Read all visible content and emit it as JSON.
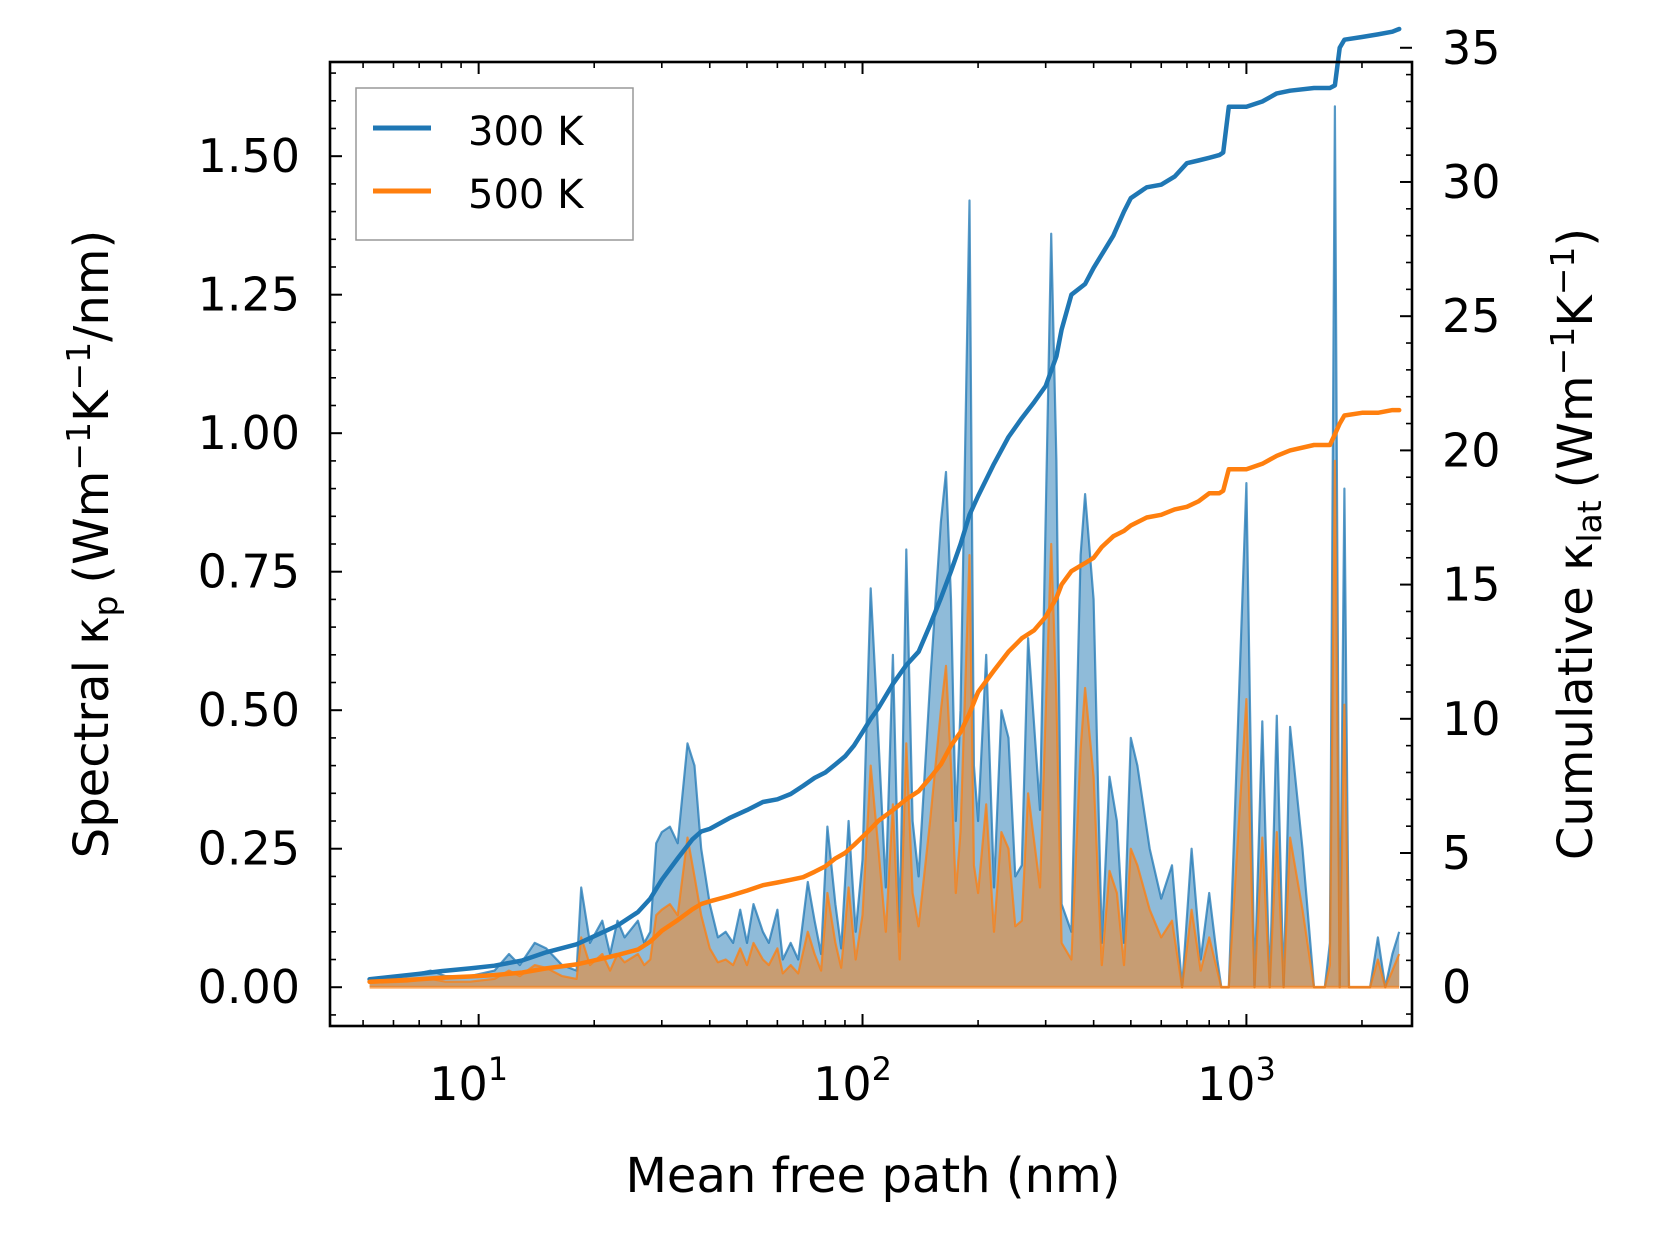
{
  "chart_data": {
    "type": "line",
    "title": "",
    "xlabel": "Mean free path (nm)",
    "ylabel_left": {
      "main": "Spectral κ",
      "sub": "p",
      "units": "(Wm",
      "e1": "−1",
      "mid": "K",
      "e2": "−1",
      "tail": "/nm)"
    },
    "ylabel_right": {
      "main": "Cumulative κ",
      "sub": "lat",
      "units": "(Wm",
      "e1": "−1",
      "mid": "K",
      "e2": "−1",
      "tail": ")"
    },
    "xscale": "log",
    "xlim": [
      4.1,
      2700
    ],
    "ylim_left": [
      -0.07,
      1.67
    ],
    "ylim_right": [
      -1.445,
      34.47
    ],
    "x_ticks": [
      {
        "value": 10,
        "base": "10",
        "exp": "1"
      },
      {
        "value": 100,
        "base": "10",
        "exp": "2"
      },
      {
        "value": 1000,
        "base": "10",
        "exp": "3"
      }
    ],
    "y_ticks_left": [
      {
        "value": 0.0,
        "label": "0.00"
      },
      {
        "value": 0.25,
        "label": "0.25"
      },
      {
        "value": 0.5,
        "label": "0.50"
      },
      {
        "value": 0.75,
        "label": "0.75"
      },
      {
        "value": 1.0,
        "label": "1.00"
      },
      {
        "value": 1.25,
        "label": "1.25"
      },
      {
        "value": 1.5,
        "label": "1.50"
      }
    ],
    "y_ticks_right": [
      {
        "value": 0,
        "label": "0"
      },
      {
        "value": 5,
        "label": "5"
      },
      {
        "value": 10,
        "label": "10"
      },
      {
        "value": 15,
        "label": "15"
      },
      {
        "value": 20,
        "label": "20"
      },
      {
        "value": 25,
        "label": "25"
      },
      {
        "value": 30,
        "label": "30"
      },
      {
        "value": 35,
        "label": "35"
      }
    ],
    "legend": {
      "position": "top-left",
      "entries": [
        {
          "label": "300 K",
          "color": "#1f77b4"
        },
        {
          "label": "500 K",
          "color": "#ff7f0e"
        }
      ]
    },
    "colors": {
      "s300": "#1f77b4",
      "s500": "#ff7f0e",
      "fill300": "#1f77b4",
      "fill500": "#ff7f0e"
    },
    "spectral": {
      "x": [
        5.2,
        6.5,
        7.5,
        8.2,
        9.5,
        11,
        12,
        12.8,
        14,
        15,
        16.5,
        18,
        18.5,
        19.5,
        21,
        22,
        23,
        24,
        26,
        27,
        28,
        29,
        30,
        31.5,
        33,
        35,
        36.5,
        38,
        40,
        42,
        44,
        46,
        48,
        50,
        52,
        55,
        57,
        60,
        62,
        65,
        68,
        72,
        75,
        78,
        81,
        85,
        88,
        92,
        96,
        100,
        105,
        110,
        115,
        120,
        125,
        130,
        135,
        140,
        150,
        160,
        165,
        170,
        175,
        180,
        190,
        195,
        200,
        210,
        220,
        230,
        240,
        250,
        260,
        270,
        290,
        310,
        320,
        330,
        350,
        370,
        380,
        400,
        420,
        440,
        460,
        480,
        500,
        520,
        560,
        600,
        640,
        680,
        720,
        760,
        800,
        840,
        860,
        880,
        900,
        1000,
        1050,
        1100,
        1150,
        1200,
        1250,
        1300,
        1400,
        1500,
        1600,
        1650,
        1700,
        1750,
        1800,
        1850,
        1900,
        2000,
        2100,
        2200,
        2300,
        2400,
        2500
      ],
      "s300": [
        0.015,
        0.02,
        0.03,
        0.02,
        0.02,
        0.03,
        0.06,
        0.04,
        0.08,
        0.07,
        0.04,
        0.03,
        0.18,
        0.08,
        0.12,
        0.06,
        0.12,
        0.09,
        0.12,
        0.08,
        0.1,
        0.26,
        0.28,
        0.29,
        0.26,
        0.44,
        0.4,
        0.25,
        0.15,
        0.09,
        0.1,
        0.08,
        0.14,
        0.08,
        0.15,
        0.1,
        0.08,
        0.14,
        0.05,
        0.08,
        0.05,
        0.19,
        0.12,
        0.06,
        0.29,
        0.15,
        0.07,
        0.3,
        0.1,
        0.23,
        0.72,
        0.45,
        0.18,
        0.6,
        0.1,
        0.79,
        0.3,
        0.2,
        0.55,
        0.84,
        0.93,
        0.7,
        0.3,
        0.5,
        1.42,
        0.4,
        0.3,
        0.6,
        0.18,
        0.5,
        0.45,
        0.2,
        0.22,
        0.63,
        0.32,
        1.36,
        0.95,
        0.15,
        0.1,
        0.78,
        0.89,
        0.7,
        0.08,
        0.38,
        0.3,
        0.08,
        0.45,
        0.4,
        0.25,
        0.16,
        0.22,
        0.0,
        0.25,
        0.05,
        0.17,
        0.05,
        0.0,
        0.0,
        0.0,
        0.91,
        0.0,
        0.48,
        0.0,
        0.49,
        0.0,
        0.47,
        0.25,
        0.0,
        0.0,
        0.08,
        1.59,
        0.0,
        0.9,
        0.0,
        0.0,
        0.0,
        0.0,
        0.09,
        0.0,
        0.06,
        0.1
      ],
      "s500": [
        0.008,
        0.01,
        0.015,
        0.01,
        0.01,
        0.015,
        0.03,
        0.02,
        0.04,
        0.035,
        0.02,
        0.015,
        0.09,
        0.04,
        0.06,
        0.03,
        0.06,
        0.045,
        0.06,
        0.04,
        0.05,
        0.13,
        0.14,
        0.15,
        0.13,
        0.27,
        0.2,
        0.13,
        0.07,
        0.045,
        0.05,
        0.04,
        0.07,
        0.04,
        0.08,
        0.05,
        0.04,
        0.07,
        0.025,
        0.04,
        0.025,
        0.1,
        0.06,
        0.03,
        0.17,
        0.08,
        0.035,
        0.18,
        0.05,
        0.13,
        0.4,
        0.25,
        0.1,
        0.33,
        0.05,
        0.44,
        0.17,
        0.11,
        0.3,
        0.5,
        0.58,
        0.4,
        0.17,
        0.28,
        0.78,
        0.22,
        0.17,
        0.33,
        0.1,
        0.28,
        0.25,
        0.11,
        0.12,
        0.35,
        0.18,
        0.8,
        0.52,
        0.08,
        0.05,
        0.43,
        0.54,
        0.38,
        0.04,
        0.21,
        0.17,
        0.04,
        0.25,
        0.22,
        0.14,
        0.09,
        0.12,
        0.0,
        0.14,
        0.03,
        0.09,
        0.03,
        0.0,
        0.0,
        0.0,
        0.52,
        0.0,
        0.27,
        0.0,
        0.28,
        0.0,
        0.27,
        0.14,
        0.0,
        0.0,
        0.04,
        0.95,
        0.0,
        0.51,
        0.0,
        0.0,
        0.0,
        0.0,
        0.05,
        0.0,
        0.03,
        0.06
      ]
    },
    "cumulative": {
      "x": [
        5.2,
        7,
        8,
        9.5,
        11,
        13,
        15,
        18,
        20,
        23,
        26,
        28,
        30,
        33,
        36,
        38,
        40,
        45,
        50,
        55,
        60,
        65,
        70,
        75,
        80,
        85,
        90,
        95,
        100,
        105,
        110,
        120,
        130,
        140,
        150,
        160,
        170,
        180,
        190,
        200,
        220,
        240,
        260,
        280,
        300,
        320,
        330,
        350,
        380,
        400,
        420,
        450,
        480,
        500,
        550,
        600,
        650,
        700,
        750,
        800,
        850,
        870,
        900,
        1000,
        1100,
        1200,
        1300,
        1500,
        1650,
        1700,
        1750,
        1800,
        2000,
        2200,
        2400,
        2500
      ],
      "c300": [
        0.3,
        0.5,
        0.6,
        0.7,
        0.8,
        1.0,
        1.3,
        1.6,
        1.9,
        2.3,
        2.8,
        3.3,
        4.0,
        4.8,
        5.5,
        5.8,
        5.9,
        6.3,
        6.6,
        6.9,
        7.0,
        7.2,
        7.5,
        7.8,
        8.0,
        8.3,
        8.6,
        9.0,
        9.5,
        10.0,
        10.4,
        11.3,
        12.0,
        12.5,
        13.5,
        14.5,
        15.5,
        16.5,
        17.6,
        18.3,
        19.5,
        20.5,
        21.2,
        21.8,
        22.4,
        23.5,
        24.5,
        25.8,
        26.2,
        26.8,
        27.3,
        28.0,
        28.9,
        29.4,
        29.8,
        29.9,
        30.2,
        30.7,
        30.8,
        30.9,
        31.0,
        31.1,
        32.8,
        32.8,
        33.0,
        33.3,
        33.4,
        33.5,
        33.5,
        33.6,
        35.0,
        35.3,
        35.4,
        35.5,
        35.6,
        35.7
      ],
      "c500": [
        0.2,
        0.3,
        0.35,
        0.4,
        0.45,
        0.55,
        0.7,
        0.85,
        1.0,
        1.2,
        1.4,
        1.7,
        2.1,
        2.5,
        2.9,
        3.1,
        3.2,
        3.4,
        3.6,
        3.8,
        3.9,
        4.0,
        4.1,
        4.3,
        4.5,
        4.8,
        5.0,
        5.3,
        5.6,
        5.9,
        6.2,
        6.6,
        7.0,
        7.3,
        7.8,
        8.3,
        9.0,
        9.5,
        10.2,
        11.0,
        11.8,
        12.5,
        13.0,
        13.3,
        13.8,
        14.5,
        15.0,
        15.5,
        15.8,
        16.0,
        16.4,
        16.8,
        17.0,
        17.2,
        17.5,
        17.6,
        17.8,
        17.9,
        18.1,
        18.4,
        18.4,
        18.5,
        19.3,
        19.3,
        19.5,
        19.8,
        20.0,
        20.2,
        20.2,
        20.6,
        21.0,
        21.3,
        21.4,
        21.4,
        21.5,
        21.5
      ]
    }
  }
}
